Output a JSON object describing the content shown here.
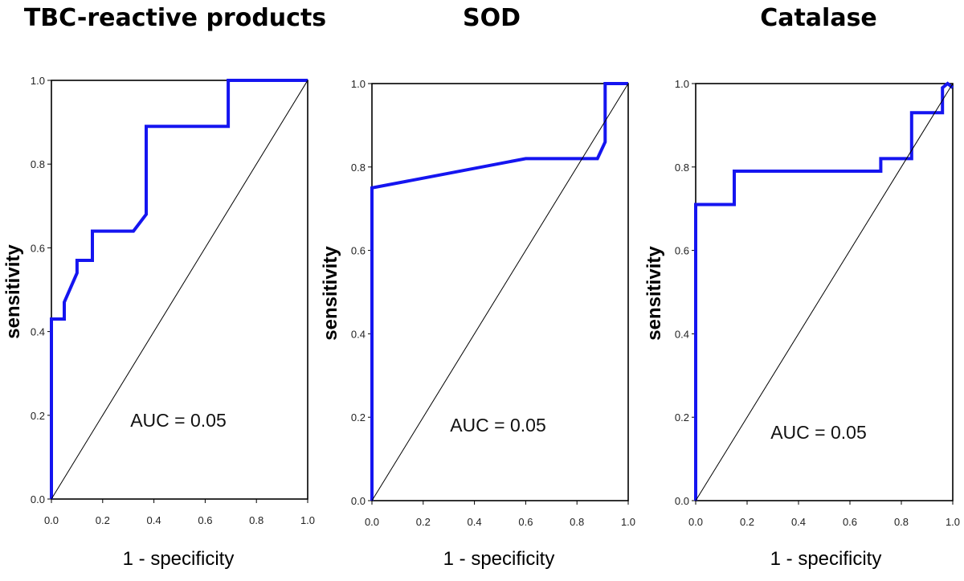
{
  "chart_data": [
    {
      "type": "line",
      "title": "TBC-reactive products",
      "xlabel": "1 - specificity",
      "ylabel": "sensitivity",
      "xlim": [
        0,
        1
      ],
      "ylim": [
        0,
        1
      ],
      "xticks": [
        "0.0",
        "0.2",
        "0.4",
        "0.6",
        "0.8",
        "1.0"
      ],
      "yticks": [
        "0.0",
        "0.2",
        "0.4",
        "0.6",
        "0.8",
        "1.0"
      ],
      "annotation": "AUC = 0.05",
      "series": [
        {
          "name": "ROC",
          "color": "#1515f0",
          "x": [
            0,
            0,
            0.05,
            0.05,
            0.1,
            0.1,
            0.16,
            0.16,
            0.32,
            0.37,
            0.37,
            0.69,
            0.69,
            1.0
          ],
          "y": [
            0,
            0.43,
            0.43,
            0.47,
            0.54,
            0.57,
            0.57,
            0.64,
            0.64,
            0.68,
            0.89,
            0.89,
            1.0,
            1.0
          ]
        },
        {
          "name": "reference",
          "color": "#000000",
          "x": [
            0,
            1
          ],
          "y": [
            0,
            1
          ]
        }
      ]
    },
    {
      "type": "line",
      "title": "SOD",
      "xlabel": "1 - specificity",
      "ylabel": "sensitivity",
      "xlim": [
        0,
        1
      ],
      "ylim": [
        0,
        1
      ],
      "xticks": [
        "0.0",
        "0.2",
        "0.4",
        "0.6",
        "0.8",
        "1.0"
      ],
      "yticks": [
        "0.0",
        "0.2",
        "0.4",
        "0.6",
        "0.8",
        "1.0"
      ],
      "annotation": "AUC = 0.05",
      "series": [
        {
          "name": "ROC",
          "color": "#1515f0",
          "x": [
            0,
            0,
            0.6,
            0.88,
            0.91,
            0.91,
            1.0
          ],
          "y": [
            0,
            0.75,
            0.82,
            0.82,
            0.86,
            1.0,
            1.0
          ]
        },
        {
          "name": "reference",
          "color": "#000000",
          "x": [
            0,
            1
          ],
          "y": [
            0,
            1
          ]
        }
      ]
    },
    {
      "type": "line",
      "title": "Catalase",
      "xlabel": "1 - specificity",
      "ylabel": "sensitivity",
      "xlim": [
        0,
        1
      ],
      "ylim": [
        0,
        1
      ],
      "xticks": [
        "0.0",
        "0.2",
        "0.4",
        "0.6",
        "0.8",
        "1.0"
      ],
      "yticks": [
        "0.0",
        "0.2",
        "0.4",
        "0.6",
        "0.8",
        "1.0"
      ],
      "annotation": "AUC = 0.05",
      "series": [
        {
          "name": "ROC",
          "color": "#1515f0",
          "x": [
            0,
            0,
            0.15,
            0.15,
            0.72,
            0.72,
            0.84,
            0.84,
            0.96,
            0.96,
            0.98,
            1.0
          ],
          "y": [
            0,
            0.71,
            0.71,
            0.79,
            0.79,
            0.82,
            0.82,
            0.93,
            0.93,
            0.99,
            1.0,
            0.99
          ]
        },
        {
          "name": "reference",
          "color": "#000000",
          "x": [
            0,
            1
          ],
          "y": [
            0,
            1
          ]
        }
      ]
    }
  ]
}
